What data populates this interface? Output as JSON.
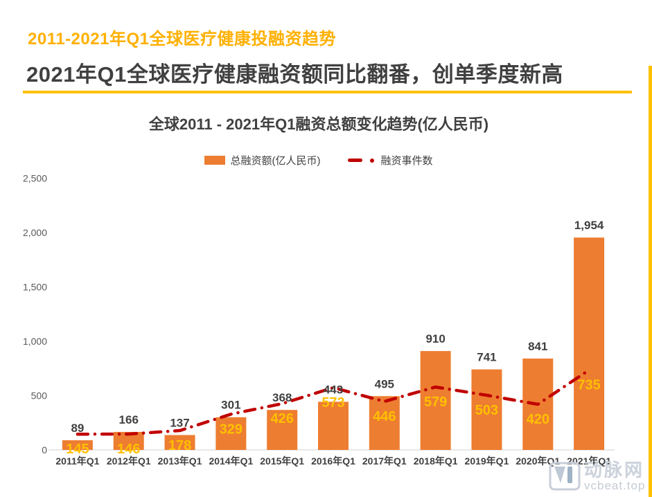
{
  "page": {
    "eyebrow_title": "2011-2021年Q1全球医疗健康投融资趋势",
    "headline": "2021年Q1全球医疗健康融资额同比翻番，创单季度新高"
  },
  "watermark": {
    "brand": "动脉网",
    "domain": "vcbeat.top",
    "logo": "vcbeat-vb-logo-icon"
  },
  "chart_data": {
    "type": "bar",
    "subtype": "bar-line-combo",
    "title": "全球2011 - 2021年Q1融资总额变化趋势(亿人民币)",
    "categories": [
      "2011年Q1",
      "2012年Q1",
      "2013年Q1",
      "2014年Q1",
      "2015年Q1",
      "2016年Q1",
      "2017年Q1",
      "2018年Q1",
      "2019年Q1",
      "2020年Q1",
      "2021年Q1"
    ],
    "series": [
      {
        "name": "总融资额(亿人民币)",
        "type": "bar",
        "color": "#ED7D31",
        "label_color": "#404040",
        "values": [
          89,
          166,
          137,
          301,
          368,
          443,
          495,
          910,
          741,
          841,
          1954
        ]
      },
      {
        "name": "融资事件数",
        "type": "line",
        "line_style": "dash-dot",
        "color": "#C00000",
        "label_color": "#FFC000",
        "values": [
          145,
          146,
          178,
          329,
          426,
          573,
          446,
          579,
          503,
          420,
          735
        ]
      }
    ],
    "y_axis": {
      "min": 0,
      "max": 2500,
      "ticks": [
        0,
        500,
        1000,
        1500,
        2000,
        2500
      ]
    },
    "grid": false,
    "legend_position": "top",
    "colors": {
      "accent_yellow": "#FFC000",
      "title_orange": "#FFB000",
      "text_dark": "#404040",
      "axis_tick_gray": "#595959",
      "axis_line_gray": "#D9D9D9"
    }
  }
}
